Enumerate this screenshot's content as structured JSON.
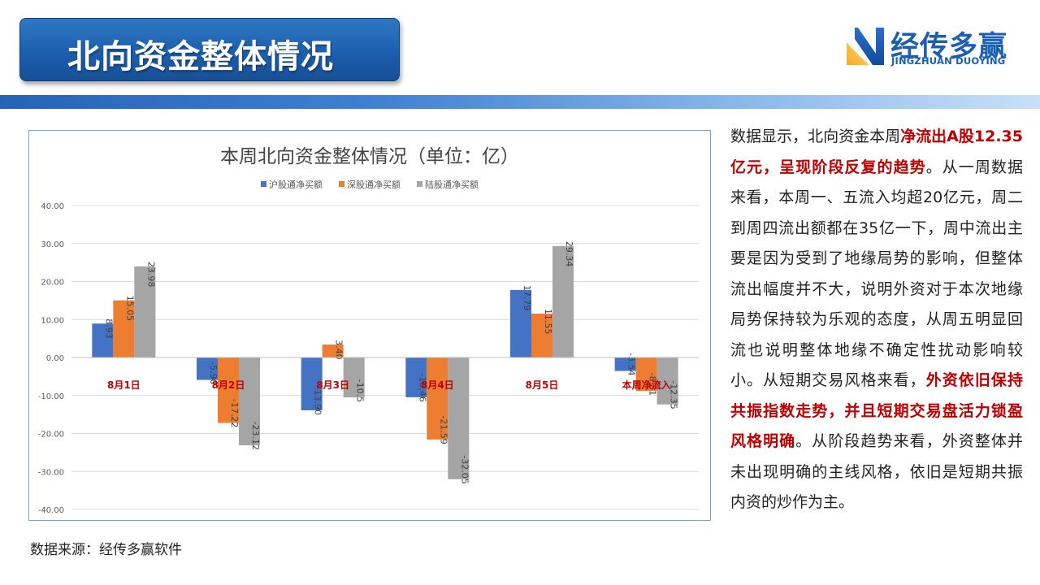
{
  "header": {
    "title": "北向资金整体情况"
  },
  "logo": {
    "name_cn": "经传多赢",
    "name_en": "JINGZHUAN DUOYING",
    "icon": "jingzhuan-logo-icon"
  },
  "colors": {
    "title_bg": "#1b5fae",
    "series_sh": "#4472c4",
    "series_sz": "#ed7d31",
    "series_total": "#a5a5a5",
    "category_label": "#c00000",
    "highlight": "#c00000"
  },
  "chart_data": {
    "type": "bar",
    "title": "本周北向资金整体情况（单位：亿）",
    "categories": [
      "8月1日",
      "8月2日",
      "8月3日",
      "8月4日",
      "8月5日",
      "本周净流入"
    ],
    "series": [
      {
        "name": "沪股通净买额",
        "values": [
          8.93,
          -5.9,
          -13.9,
          -10.46,
          17.79,
          -3.54
        ],
        "labels": [
          "8.93",
          "-5.90",
          "-13.90",
          "-10.46",
          "17.79",
          "-3.54"
        ]
      },
      {
        "name": "深股通净买额",
        "values": [
          15.05,
          -17.22,
          3.4,
          -21.59,
          11.55,
          -8.81
        ],
        "labels": [
          "15.05",
          "-17.22",
          "3.40",
          "-21.59",
          "11.55",
          "-8.81"
        ]
      },
      {
        "name": "陆股通净买额",
        "values": [
          23.98,
          -23.12,
          -10.5,
          -32.05,
          29.34,
          -12.35
        ],
        "labels": [
          "23.98",
          "-23.12",
          "-10.5",
          "-32.05",
          "29.34",
          "-12.35"
        ]
      }
    ],
    "yticks": [
      "40.00",
      "30.00",
      "20.00",
      "10.00",
      "0.00",
      "-10.00",
      "-20.00",
      "-30.00",
      "-40.00"
    ],
    "ylim": [
      -40,
      40
    ],
    "grid": true,
    "legend_position": "top"
  },
  "source": "数据来源：经传多赢软件",
  "analysis": [
    {
      "text": "数据显示，北向资金本周",
      "highlight": false
    },
    {
      "text": "净流出A股12.35亿元，呈现阶段反复的趋势",
      "highlight": true
    },
    {
      "text": "。从一周数据来看，本周一、五流入均超20亿元，周二到周四流出额都在35亿一下，周中流出主要是因为受到了地缘局势的影响，但整体流出幅度并不大，说明外资对于本次地缘局势保持较为乐观的态度，从周五明显回流也说明整体地缘不确定性扰动影响较小。从短期交易风格来看，",
      "highlight": false
    },
    {
      "text": "外资依旧保持共振指数走势，并且短期交易盘活力锁盈风格明确",
      "highlight": true
    },
    {
      "text": "。从阶段趋势来看，外资整体并未出现明确的主线风格，依旧是短期共振内资的炒作为主。",
      "highlight": false
    }
  ]
}
